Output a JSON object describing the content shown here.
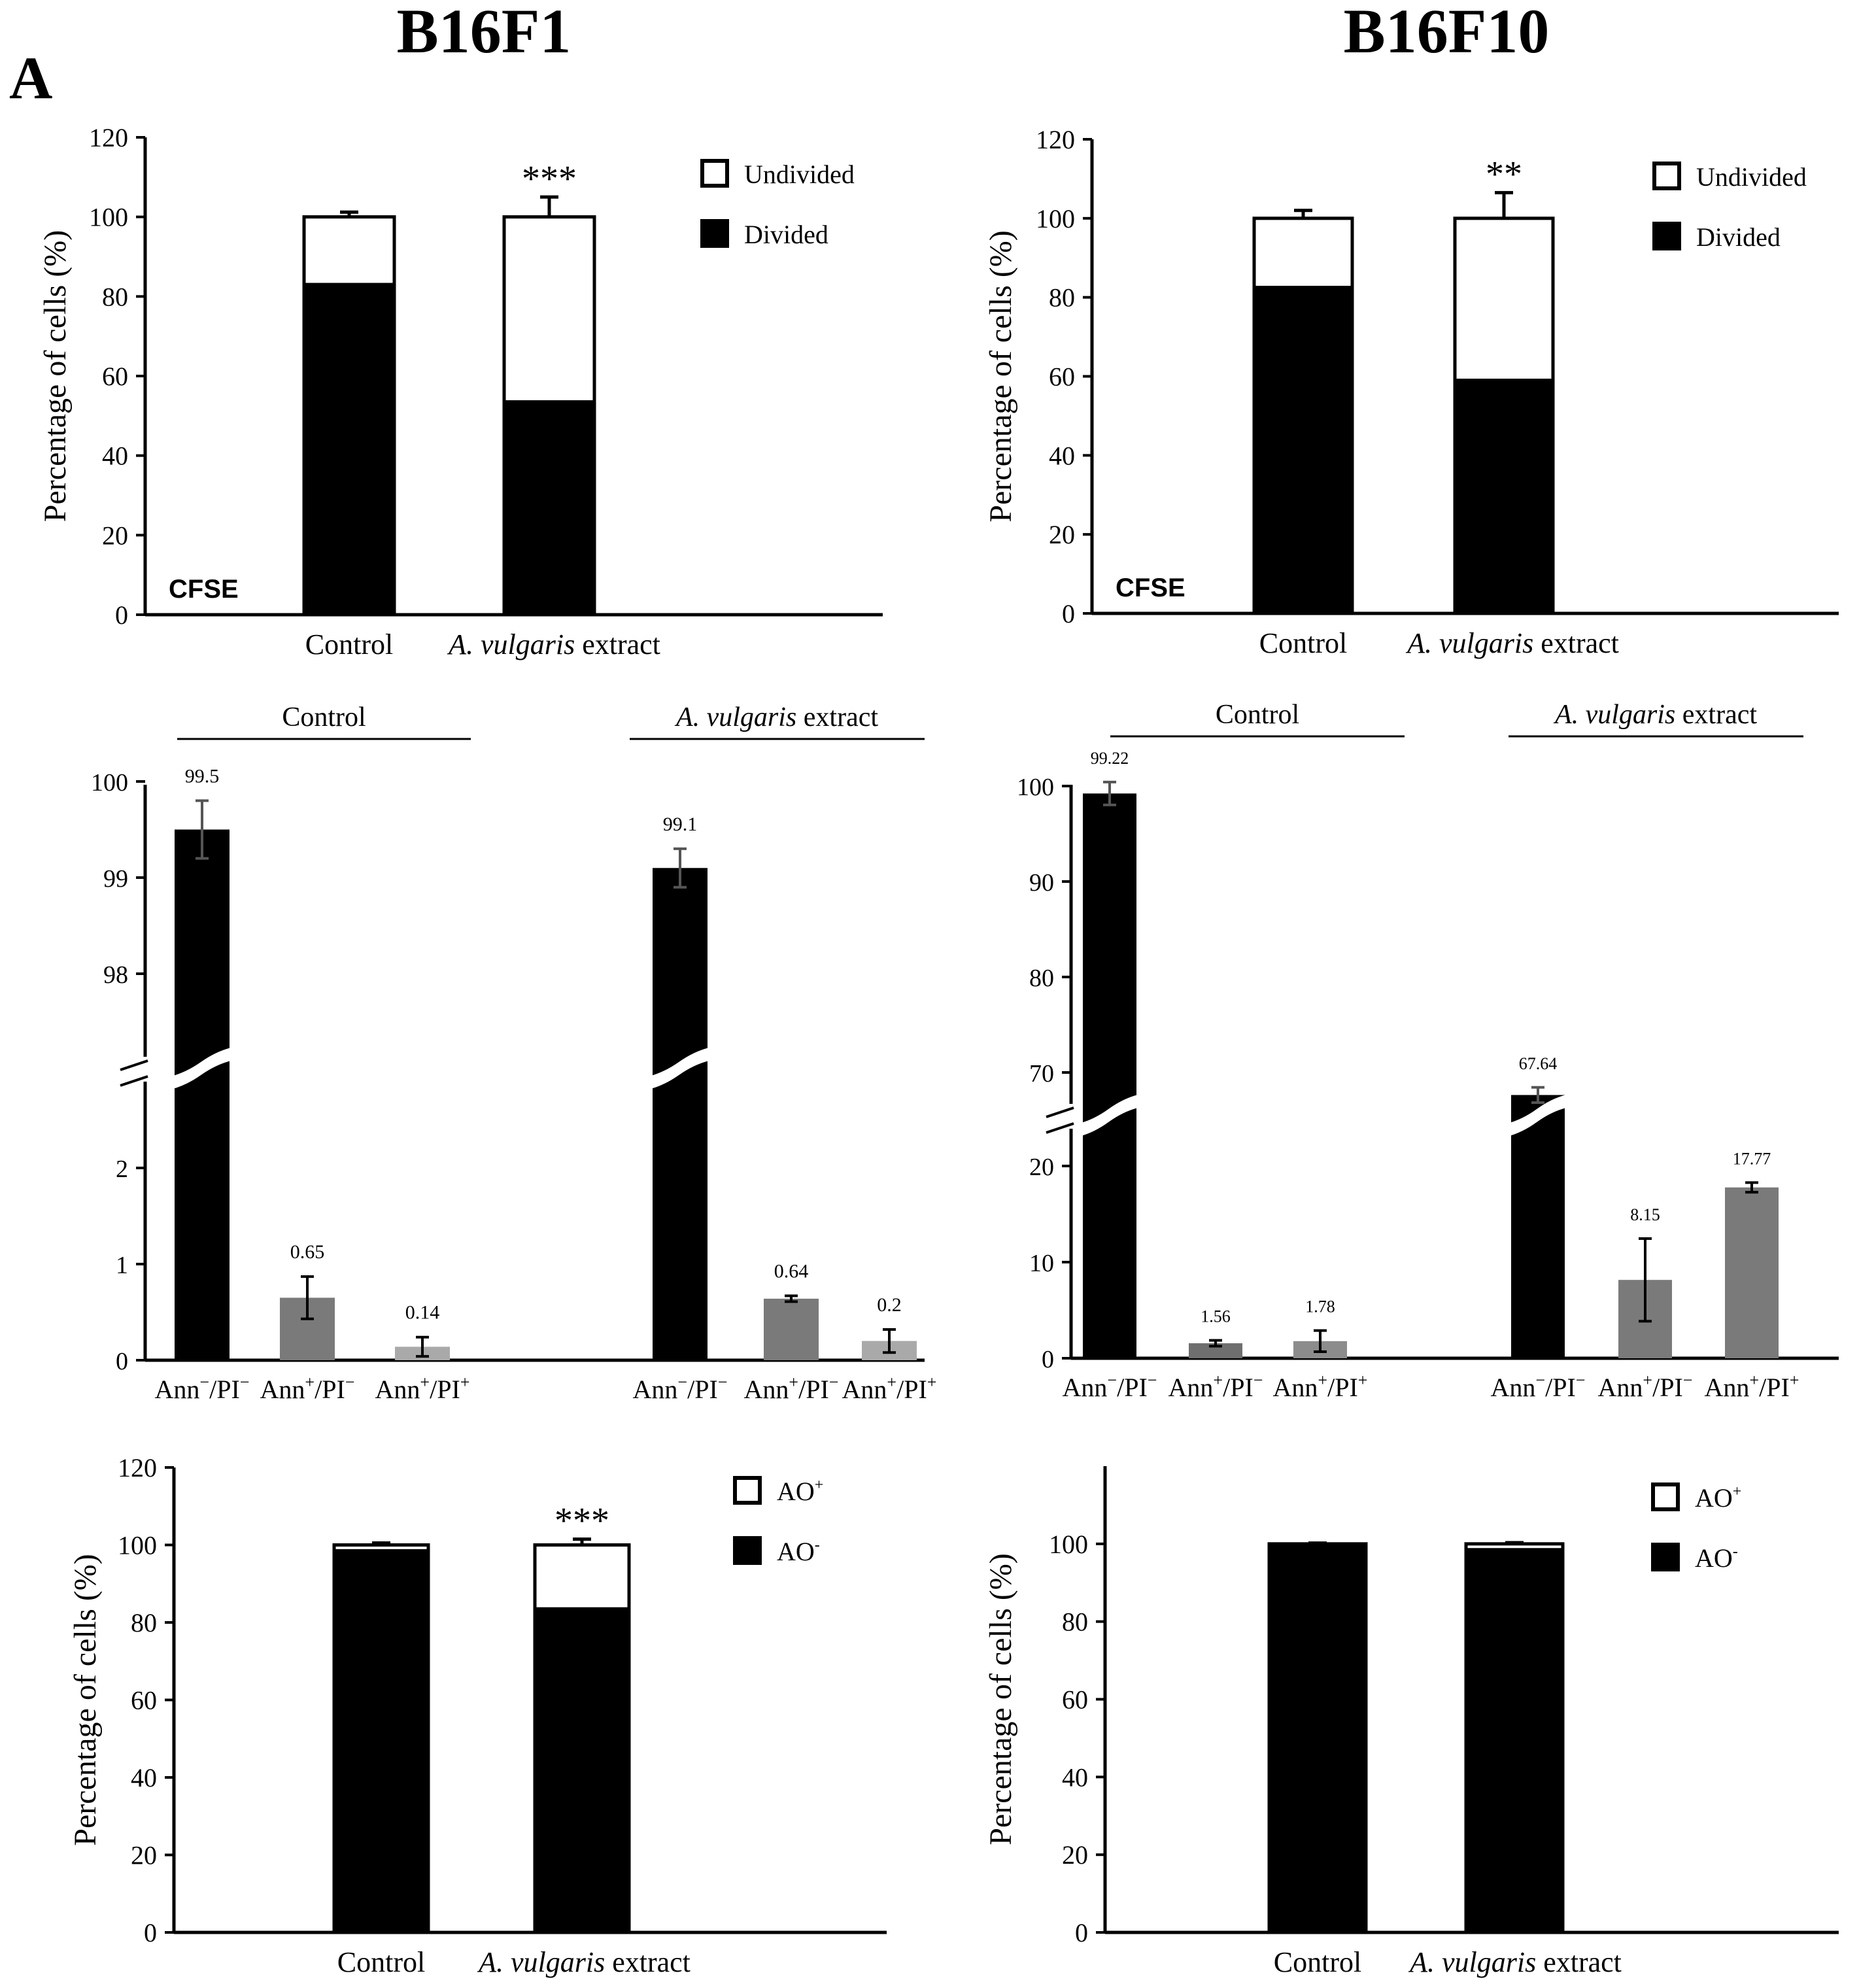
{
  "figure": {
    "panel_label": "A",
    "column_titles": [
      "B16F1",
      "B16F10"
    ]
  },
  "chart_data": [
    {
      "id": "cfse-b16f1",
      "type": "bar",
      "stacked": true,
      "ylabel": "Percentage of cells (%)",
      "ylim": [
        0,
        120
      ],
      "yticks": [
        0,
        20,
        40,
        60,
        80,
        100,
        120
      ],
      "categories": [
        "Control",
        "A. vulgaris extract"
      ],
      "series": [
        {
          "name": "Divided",
          "color": "#000000",
          "values": [
            83,
            53.5
          ],
          "errors": [
            1.2,
            5
          ]
        },
        {
          "name": "Undivided",
          "color": "#ffffff",
          "values": [
            17,
            46.5
          ],
          "errors": [
            1.2,
            5
          ]
        }
      ],
      "legend": [
        "Undivided",
        "Divided"
      ],
      "significance": [
        "",
        "***"
      ],
      "annotation": "CFSE"
    },
    {
      "id": "cfse-b16f10",
      "type": "bar",
      "stacked": true,
      "ylabel": "Percentage of cells (%)",
      "ylim": [
        0,
        120
      ],
      "yticks": [
        0,
        20,
        40,
        60,
        80,
        100,
        120
      ],
      "categories": [
        "Control",
        "A. vulgaris extract"
      ],
      "series": [
        {
          "name": "Divided",
          "color": "#000000",
          "values": [
            82.5,
            59
          ],
          "errors": [
            2.5,
            7
          ]
        },
        {
          "name": "Undivided",
          "color": "#ffffff",
          "values": [
            17.5,
            41
          ],
          "errors": [
            2,
            6.5
          ]
        }
      ],
      "legend": [
        "Undivided",
        "Divided"
      ],
      "significance": [
        "",
        "**"
      ],
      "annotation": "CFSE"
    },
    {
      "id": "annexin-b16f1",
      "type": "bar",
      "broken_axis": true,
      "lower_yticks": [
        0,
        1,
        2
      ],
      "upper_yticks": [
        98,
        99,
        100
      ],
      "group_labels": [
        "Control",
        "A. vulgaris extract"
      ],
      "categories": [
        "Ann−/PI−",
        "Ann+/PI−",
        "Ann+/PI+",
        "Ann−/PI−",
        "Ann+/PI−",
        "Ann+/PI+"
      ],
      "values": [
        99.5,
        0.65,
        0.14,
        99.1,
        0.64,
        0.2
      ],
      "errors": [
        0.3,
        0.22,
        0.1,
        0.2,
        0.03,
        0.12
      ],
      "value_labels": [
        "99.5",
        "0.65",
        "0.14",
        "99.1",
        "0.64",
        "0.2"
      ],
      "colors": [
        "#000000",
        "#7a7a7a",
        "#a9a9a9",
        "#000000",
        "#7a7a7a",
        "#a9a9a9"
      ]
    },
    {
      "id": "annexin-b16f10",
      "type": "bar",
      "broken_axis": true,
      "lower_yticks": [
        0,
        10,
        20
      ],
      "upper_yticks": [
        70,
        80,
        90,
        100
      ],
      "group_labels": [
        "Control",
        "A. vulgaris extract"
      ],
      "categories": [
        "Ann−/PI−",
        "Ann+/PI−",
        "Ann+/PI+",
        "Ann−/PI−",
        "Ann+/PI−",
        "Ann+/PI+"
      ],
      "values": [
        99.22,
        1.56,
        1.78,
        67.64,
        8.15,
        17.77
      ],
      "errors": [
        1.2,
        0.3,
        1.1,
        0.8,
        4.3,
        0.5
      ],
      "value_labels": [
        "99.22",
        "1.56",
        "1.78",
        "67.64",
        "8.15",
        "17.77"
      ],
      "colors": [
        "#000000",
        "#6f6f6f",
        "#8c8c8c",
        "#000000",
        "#7a7a7a",
        "#7a7a7a"
      ]
    },
    {
      "id": "ao-b16f1",
      "type": "bar",
      "stacked": true,
      "ylabel": "Percentage of cells (%)",
      "ylim": [
        0,
        120
      ],
      "yticks": [
        0,
        20,
        40,
        60,
        80,
        100,
        120
      ],
      "categories": [
        "Control",
        "A. vulgaris extract"
      ],
      "series": [
        {
          "name": "AO-",
          "color": "#000000",
          "values": [
            98.5,
            83.5
          ],
          "errors": [
            0.4,
            1.2
          ]
        },
        {
          "name": "AO+",
          "color": "#ffffff",
          "values": [
            1.5,
            16.5
          ],
          "errors": [
            0.5,
            1.5
          ]
        }
      ],
      "legend": [
        "AO+",
        "AO-"
      ],
      "significance": [
        "",
        "***"
      ]
    },
    {
      "id": "ao-b16f10",
      "type": "bar",
      "stacked": true,
      "ylabel": "Percentage of cells (%)",
      "ylim": [
        0,
        120
      ],
      "yticks": [
        0,
        20,
        40,
        60,
        80,
        100
      ],
      "categories": [
        "Control",
        "A. vulgaris extract"
      ],
      "series": [
        {
          "name": "AO-",
          "color": "#000000",
          "values": [
            99.6,
            98.5
          ],
          "errors": [
            0.2,
            0.3
          ]
        },
        {
          "name": "AO+",
          "color": "#ffffff",
          "values": [
            0.4,
            1.5
          ],
          "errors": [
            0.2,
            0.3
          ]
        }
      ],
      "legend": [
        "AO+",
        "AO-"
      ],
      "significance": [
        "",
        ""
      ]
    }
  ]
}
